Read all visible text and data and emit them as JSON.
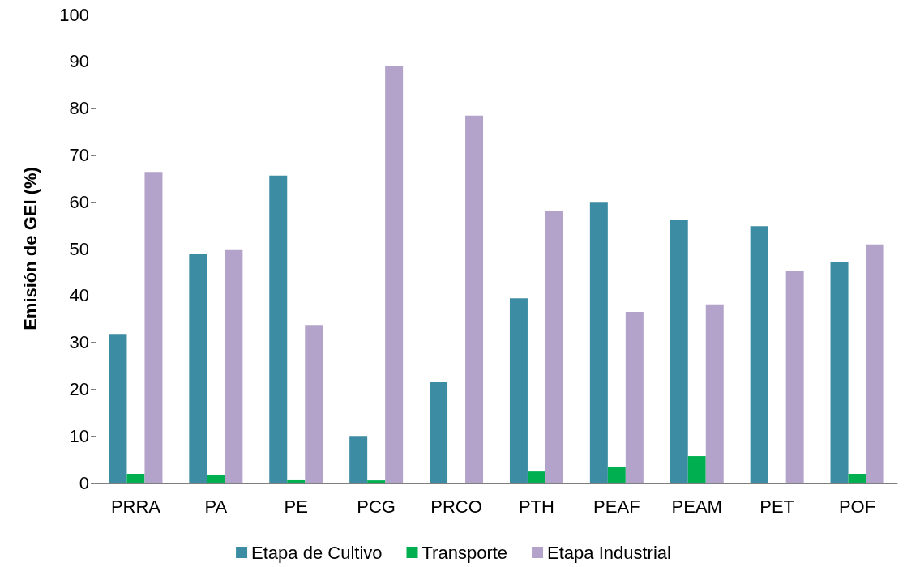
{
  "chart_data": {
    "type": "bar",
    "ylabel": "Emisión de GEI (%)",
    "categories": [
      "PRRA",
      "PA",
      "PE",
      "PCG",
      "PRCO",
      "PTH",
      "PEAF",
      "PEAM",
      "PET",
      "POF"
    ],
    "series": [
      {
        "name": "Etapa de Cultivo",
        "color": "#3c8ca3",
        "values": [
          31.8,
          48.8,
          65.6,
          10.0,
          21.5,
          39.4,
          60.0,
          56.1,
          54.8,
          47.2
        ]
      },
      {
        "name": "Transporte",
        "color": "#00b050",
        "values": [
          1.9,
          1.6,
          0.7,
          0.5,
          0,
          2.4,
          3.3,
          5.7,
          0,
          1.9
        ]
      },
      {
        "name": "Etapa Industrial",
        "color": "#b3a2c9",
        "values": [
          66.4,
          49.7,
          33.7,
          89.1,
          78.4,
          58.1,
          36.5,
          38.1,
          45.2,
          50.9
        ]
      }
    ],
    "ylim": [
      0,
      100
    ],
    "yticks": [
      0,
      10,
      20,
      30,
      40,
      50,
      60,
      70,
      80,
      90,
      100
    ],
    "grid": false,
    "legend": "bottom"
  }
}
